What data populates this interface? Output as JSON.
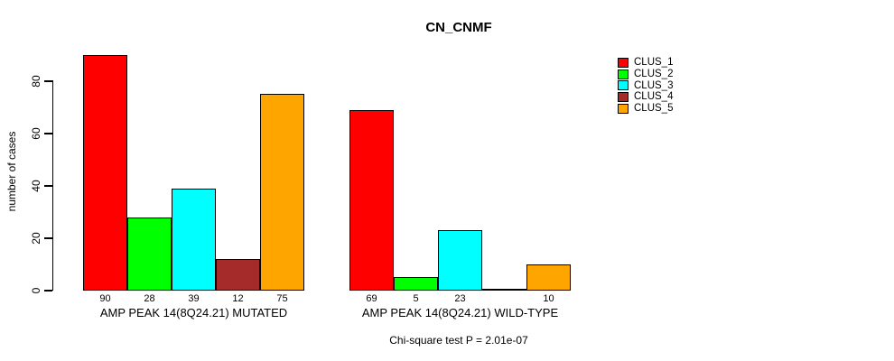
{
  "figure": {
    "title": "CN_CNMF",
    "footnote": "Chi-square test P = 2.01e-07"
  },
  "chart_data": {
    "type": "bar",
    "title": "CN_CNMF",
    "xlabel": "",
    "ylabel": "number of cases",
    "ylim": [
      0,
      90
    ],
    "yticks": [
      0,
      20,
      40,
      60,
      80
    ],
    "grid": false,
    "legend_position": "right-inside",
    "bar_value_labels_shown": true,
    "categories": [
      "AMP PEAK 14(8Q24.21) MUTATED",
      "AMP PEAK 14(8Q24.21) WILD-TYPE"
    ],
    "series": [
      {
        "name": "CLUS_1",
        "color": "#FF0000",
        "values": [
          90,
          69
        ]
      },
      {
        "name": "CLUS_2",
        "color": "#00FF00",
        "values": [
          28,
          5
        ]
      },
      {
        "name": "CLUS_3",
        "color": "#00FFFF",
        "values": [
          39,
          23
        ]
      },
      {
        "name": "CLUS_4",
        "color": "#A52A2A",
        "values": [
          12,
          0
        ]
      },
      {
        "name": "CLUS_5",
        "color": "#FFA500",
        "values": [
          75,
          10
        ]
      }
    ],
    "groups": [
      {
        "label": "AMP PEAK 14(8Q24.21) MUTATED",
        "values": [
          90,
          28,
          39,
          12,
          75
        ]
      },
      {
        "label": "AMP PEAK 14(8Q24.21) WILD-TYPE",
        "values": [
          69,
          5,
          23,
          0,
          10
        ]
      }
    ],
    "footnote": "Chi-square test P = 2.01e-07"
  }
}
